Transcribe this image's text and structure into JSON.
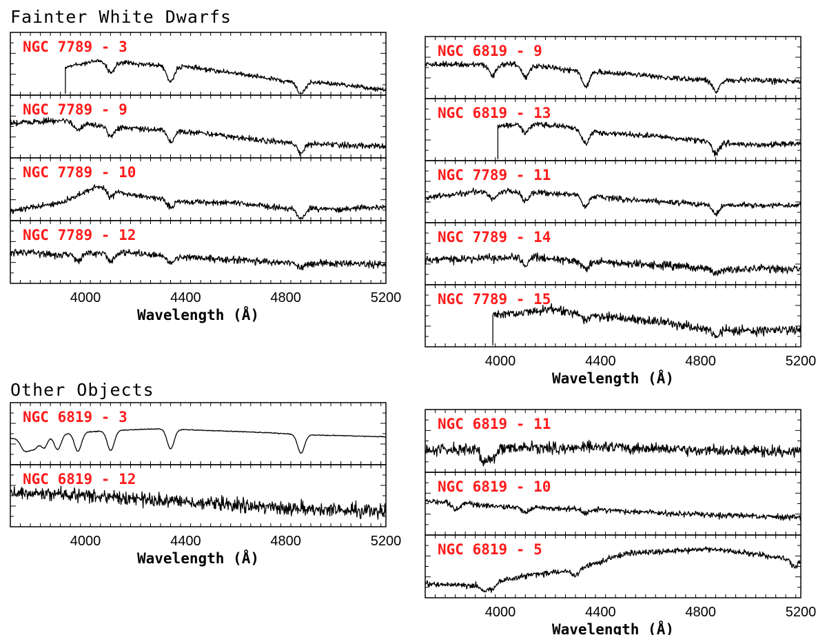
{
  "sections": {
    "fainter": "Fainter White Dwarfs",
    "other": "Other Objects"
  },
  "xlabel": "Wavelength (Å)",
  "chart_data": [
    {
      "type": "line",
      "group": "Fainter White Dwarfs",
      "column": "left",
      "xlabel": "Wavelength (Å)",
      "xlim": [
        3700,
        5200
      ],
      "xticks": [
        4000,
        4400,
        4800,
        5200
      ],
      "series": [
        {
          "name": "NGC 7789 - 3",
          "x_start": 3920,
          "continuum": [
            [
              3920,
              0.55
            ],
            [
              4050,
              0.45
            ],
            [
              4200,
              0.5
            ],
            [
              4400,
              0.55
            ],
            [
              4600,
              0.65
            ],
            [
              4800,
              0.78
            ],
            [
              5000,
              0.82
            ],
            [
              5200,
              0.92
            ]
          ],
          "lines": [
            [
              4101,
              0.18
            ],
            [
              4340,
              0.25
            ],
            [
              4861,
              0.2
            ]
          ],
          "noise": 0.04
        },
        {
          "name": "NGC 7789 - 9",
          "x_start": 3700,
          "continuum": [
            [
              3700,
              0.45
            ],
            [
              3900,
              0.4
            ],
            [
              4100,
              0.5
            ],
            [
              4300,
              0.55
            ],
            [
              4500,
              0.62
            ],
            [
              4700,
              0.72
            ],
            [
              4900,
              0.78
            ],
            [
              5200,
              0.82
            ]
          ],
          "lines": [
            [
              3970,
              0.12
            ],
            [
              4101,
              0.15
            ],
            [
              4340,
              0.18
            ],
            [
              4861,
              0.15
            ]
          ],
          "noise": 0.05
        },
        {
          "name": "NGC 7789 - 10",
          "x_start": 3700,
          "continuum": [
            [
              3700,
              0.85
            ],
            [
              3900,
              0.72
            ],
            [
              4050,
              0.45
            ],
            [
              4200,
              0.6
            ],
            [
              4400,
              0.7
            ],
            [
              4600,
              0.72
            ],
            [
              4800,
              0.8
            ],
            [
              5000,
              0.82
            ],
            [
              5200,
              0.78
            ]
          ],
          "lines": [
            [
              4101,
              0.12
            ],
            [
              4340,
              0.12
            ],
            [
              4861,
              0.18
            ]
          ],
          "noise": 0.05
        },
        {
          "name": "NGC 7789 - 12",
          "x_start": 3700,
          "continuum": [
            [
              3700,
              0.5
            ],
            [
              3900,
              0.55
            ],
            [
              4100,
              0.5
            ],
            [
              4300,
              0.55
            ],
            [
              4500,
              0.6
            ],
            [
              4700,
              0.65
            ],
            [
              4900,
              0.68
            ],
            [
              5200,
              0.7
            ]
          ],
          "lines": [
            [
              3970,
              0.12
            ],
            [
              4101,
              0.15
            ],
            [
              4340,
              0.12
            ],
            [
              4861,
              0.08
            ]
          ],
          "noise": 0.06
        }
      ]
    },
    {
      "type": "line",
      "group": "Fainter White Dwarfs",
      "column": "right",
      "xlabel": "Wavelength (Å)",
      "xlim": [
        3700,
        5200
      ],
      "xticks": [
        4000,
        4400,
        4800,
        5200
      ],
      "series": [
        {
          "name": "NGC 6819 - 9",
          "x_start": 3700,
          "continuum": [
            [
              3700,
              0.45
            ],
            [
              3900,
              0.45
            ],
            [
              4100,
              0.45
            ],
            [
              4300,
              0.55
            ],
            [
              4500,
              0.6
            ],
            [
              4700,
              0.68
            ],
            [
              4900,
              0.7
            ],
            [
              5200,
              0.72
            ]
          ],
          "lines": [
            [
              3970,
              0.18
            ],
            [
              4101,
              0.2
            ],
            [
              4340,
              0.25
            ],
            [
              4861,
              0.2
            ]
          ],
          "noise": 0.05
        },
        {
          "name": "NGC 6819 - 13",
          "x_start": 3990,
          "continuum": [
            [
              3990,
              0.45
            ],
            [
              4100,
              0.4
            ],
            [
              4250,
              0.45
            ],
            [
              4400,
              0.55
            ],
            [
              4600,
              0.6
            ],
            [
              4800,
              0.68
            ],
            [
              5000,
              0.75
            ],
            [
              5200,
              0.72
            ]
          ],
          "lines": [
            [
              4101,
              0.15
            ],
            [
              4340,
              0.22
            ],
            [
              4861,
              0.18
            ]
          ],
          "noise": 0.05
        },
        {
          "name": "NGC 7789 - 11",
          "x_start": 3700,
          "continuum": [
            [
              3700,
              0.6
            ],
            [
              3900,
              0.5
            ],
            [
              4100,
              0.5
            ],
            [
              4300,
              0.55
            ],
            [
              4500,
              0.62
            ],
            [
              4700,
              0.68
            ],
            [
              4900,
              0.72
            ],
            [
              5200,
              0.72
            ]
          ],
          "lines": [
            [
              3970,
              0.12
            ],
            [
              4101,
              0.15
            ],
            [
              4340,
              0.18
            ],
            [
              4861,
              0.15
            ]
          ],
          "noise": 0.05
        },
        {
          "name": "NGC 7789 - 14",
          "x_start": 3700,
          "continuum": [
            [
              3700,
              0.6
            ],
            [
              3900,
              0.58
            ],
            [
              4100,
              0.55
            ],
            [
              4300,
              0.62
            ],
            [
              4500,
              0.66
            ],
            [
              4700,
              0.7
            ],
            [
              4900,
              0.75
            ],
            [
              5200,
              0.75
            ]
          ],
          "lines": [
            [
              4101,
              0.12
            ],
            [
              4340,
              0.12
            ],
            [
              4861,
              0.1
            ]
          ],
          "noise": 0.07
        },
        {
          "name": "NGC 7789 - 15",
          "x_start": 3970,
          "continuum": [
            [
              3970,
              0.5
            ],
            [
              4200,
              0.4
            ],
            [
              4400,
              0.5
            ],
            [
              4600,
              0.58
            ],
            [
              4800,
              0.7
            ],
            [
              5000,
              0.75
            ],
            [
              5200,
              0.72
            ]
          ],
          "lines": [
            [
              4340,
              0.1
            ],
            [
              4861,
              0.12
            ]
          ],
          "noise": 0.08
        }
      ]
    },
    {
      "type": "line",
      "group": "Other Objects",
      "column": "left",
      "xlabel": "Wavelength (Å)",
      "xlim": [
        3700,
        5200
      ],
      "xticks": [
        4000,
        4400,
        4800,
        5200
      ],
      "series": [
        {
          "name": "NGC 6819 - 3",
          "x_start": 3700,
          "continuum": [
            [
              3700,
              0.58
            ],
            [
              3900,
              0.5
            ],
            [
              4100,
              0.45
            ],
            [
              4300,
              0.42
            ],
            [
              4500,
              0.45
            ],
            [
              4700,
              0.48
            ],
            [
              4900,
              0.52
            ],
            [
              5200,
              0.55
            ]
          ],
          "lines": [
            [
              3750,
              0.14
            ],
            [
              3771,
              0.16
            ],
            [
              3798,
              0.18
            ],
            [
              3835,
              0.2
            ],
            [
              3889,
              0.25
            ],
            [
              3970,
              0.3
            ],
            [
              4101,
              0.32
            ],
            [
              4340,
              0.32
            ],
            [
              4861,
              0.3
            ]
          ],
          "noise": 0.008
        },
        {
          "name": "NGC 6819 - 12",
          "x_start": 3700,
          "continuum": [
            [
              3700,
              0.45
            ],
            [
              4000,
              0.5
            ],
            [
              4400,
              0.6
            ],
            [
              4800,
              0.7
            ],
            [
              5200,
              0.75
            ]
          ],
          "lines": [],
          "noise": 0.12
        }
      ]
    },
    {
      "type": "line",
      "group": "Other Objects",
      "column": "right",
      "xlabel": "Wavelength (Å)",
      "xlim": [
        3700,
        5200
      ],
      "xticks": [
        4000,
        4400,
        4800,
        5200
      ],
      "series": [
        {
          "name": "NGC 6819 - 11",
          "x_start": 3700,
          "continuum": [
            [
              3700,
              0.65
            ],
            [
              4000,
              0.62
            ],
            [
              4400,
              0.6
            ],
            [
              4800,
              0.65
            ],
            [
              5200,
              0.68
            ]
          ],
          "lines": [
            [
              3935,
              0.2
            ],
            [
              3970,
              0.15
            ]
          ],
          "noise": 0.1
        },
        {
          "name": "NGC 6819 - 10",
          "x_start": 3700,
          "continuum": [
            [
              3700,
              0.45
            ],
            [
              4000,
              0.55
            ],
            [
              4400,
              0.6
            ],
            [
              4800,
              0.68
            ],
            [
              5200,
              0.72
            ]
          ],
          "lines": [
            [
              3820,
              0.1
            ],
            [
              4101,
              0.08
            ],
            [
              4340,
              0.06
            ]
          ],
          "noise": 0.05
        },
        {
          "name": "NGC 6819 - 5",
          "x_start": 3700,
          "continuum": [
            [
              3700,
              0.78
            ],
            [
              3900,
              0.8
            ],
            [
              4100,
              0.65
            ],
            [
              4300,
              0.55
            ],
            [
              4500,
              0.3
            ],
            [
              4700,
              0.25
            ],
            [
              4850,
              0.22
            ],
            [
              5000,
              0.3
            ],
            [
              5200,
              0.4
            ]
          ],
          "lines": [
            [
              3935,
              0.12
            ],
            [
              3970,
              0.1
            ],
            [
              4300,
              0.1
            ],
            [
              5175,
              0.12
            ]
          ],
          "noise": 0.05
        }
      ]
    }
  ]
}
